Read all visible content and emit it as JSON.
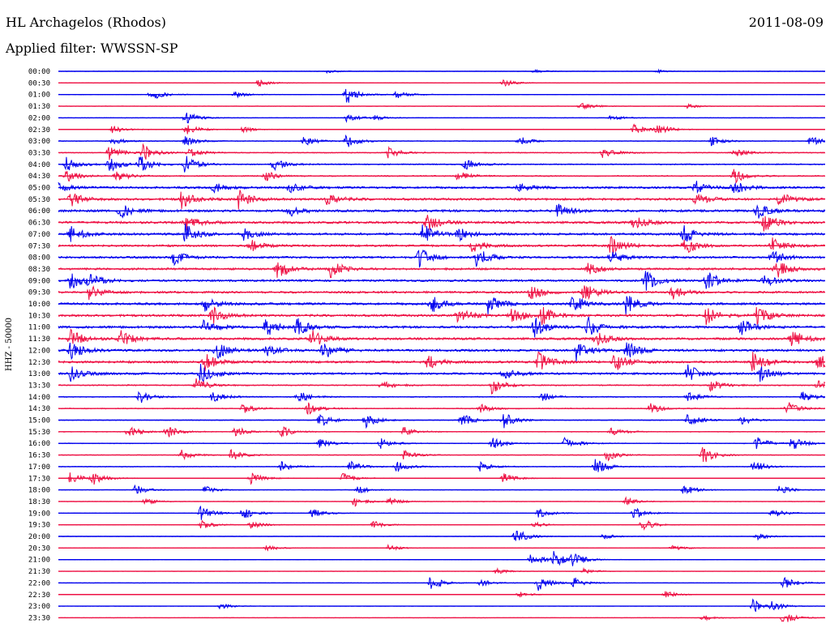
{
  "header": {
    "station": "HL Archagelos (Rhodos)",
    "date": "2011-08-09",
    "filter": "Applied filter: WWSSN-SP"
  },
  "channel_label": "HHZ - 50000",
  "colors": {
    "even_trace": "#0000ee",
    "odd_trace": "#ee1144",
    "background": "#ffffff",
    "text": "#000000"
  },
  "chart_data": {
    "type": "line",
    "title": "HL Archagelos (Rhodos)",
    "subtitle": "Applied filter: WWSSN-SP",
    "ylabel": "HHZ - 50000",
    "xlabel": "",
    "grid": false,
    "legend": "none",
    "trace_minutes": 30,
    "rows": [
      {
        "label": "00:00",
        "events": [
          [
            35,
            0.15
          ],
          [
            62,
            0.2
          ],
          [
            78,
            0.15
          ]
        ],
        "noise": 0.08
      },
      {
        "label": "00:30",
        "events": [
          [
            26,
            0.35
          ],
          [
            58,
            0.4
          ]
        ],
        "noise": 0.1
      },
      {
        "label": "01:00",
        "events": [
          [
            12,
            0.6
          ],
          [
            23,
            0.3
          ],
          [
            37.5,
            1.0
          ],
          [
            44,
            0.4
          ]
        ],
        "noise": 0.1
      },
      {
        "label": "01:30",
        "events": [
          [
            68,
            0.5
          ],
          [
            82,
            0.2
          ]
        ],
        "noise": 0.08
      },
      {
        "label": "02:00",
        "events": [
          [
            16.5,
            0.7
          ],
          [
            37.5,
            0.5
          ],
          [
            41,
            0.3
          ],
          [
            72,
            0.3
          ]
        ],
        "noise": 0.1
      },
      {
        "label": "02:30",
        "events": [
          [
            7,
            0.4
          ],
          [
            16.5,
            0.6
          ],
          [
            24,
            0.3
          ],
          [
            75,
            0.5
          ],
          [
            78,
            0.6
          ]
        ],
        "noise": 0.12
      },
      {
        "label": "03:00",
        "events": [
          [
            7,
            0.4
          ],
          [
            16.5,
            0.5
          ],
          [
            32,
            0.5
          ],
          [
            37.5,
            0.7
          ],
          [
            60,
            0.5
          ],
          [
            85,
            0.5
          ],
          [
            98,
            0.5
          ]
        ],
        "noise": 0.15
      },
      {
        "label": "03:30",
        "events": [
          [
            6.5,
            0.8
          ],
          [
            11,
            0.9
          ],
          [
            17,
            0.5
          ],
          [
            43,
            0.6
          ],
          [
            71,
            0.6
          ],
          [
            88,
            0.5
          ]
        ],
        "noise": 0.2
      },
      {
        "label": "04:00",
        "events": [
          [
            1,
            0.7
          ],
          [
            6.5,
            0.9
          ],
          [
            10.5,
            0.9
          ],
          [
            16.5,
            0.9
          ],
          [
            28,
            0.6
          ],
          [
            53,
            0.6
          ]
        ],
        "noise": 0.25
      },
      {
        "label": "04:30",
        "events": [
          [
            1,
            0.6
          ],
          [
            7.5,
            0.6
          ],
          [
            27,
            0.5
          ],
          [
            52,
            0.5
          ],
          [
            88,
            0.8
          ]
        ],
        "noise": 0.25
      },
      {
        "label": "05:00",
        "events": [
          [
            0,
            0.5
          ],
          [
            20,
            0.6
          ],
          [
            30,
            0.5
          ],
          [
            60,
            0.5
          ],
          [
            83,
            0.7
          ],
          [
            88,
            0.7
          ]
        ],
        "noise": 0.45
      },
      {
        "label": "05:30",
        "events": [
          [
            1.5,
            0.8
          ],
          [
            16,
            0.9
          ],
          [
            23.5,
            0.9
          ],
          [
            35,
            0.7
          ],
          [
            83,
            0.7
          ],
          [
            94,
            0.7
          ]
        ],
        "noise": 0.5
      },
      {
        "label": "06:00",
        "events": [
          [
            8,
            0.7
          ],
          [
            30,
            0.6
          ],
          [
            65,
            0.7
          ],
          [
            91,
            0.8
          ]
        ],
        "noise": 0.5
      },
      {
        "label": "06:30",
        "events": [
          [
            16.5,
            0.8
          ],
          [
            48,
            0.9
          ],
          [
            75,
            0.7
          ],
          [
            92,
            0.9
          ]
        ],
        "noise": 0.5
      },
      {
        "label": "07:00",
        "events": [
          [
            1.5,
            0.8
          ],
          [
            16.5,
            1.0
          ],
          [
            24,
            0.7
          ],
          [
            47.5,
            1.0
          ],
          [
            52,
            0.7
          ],
          [
            81.5,
            0.9
          ]
        ],
        "noise": 0.5
      },
      {
        "label": "07:30",
        "events": [
          [
            25,
            0.6
          ],
          [
            54,
            0.7
          ],
          [
            72,
            1.0
          ],
          [
            81.5,
            1.0
          ],
          [
            93,
            0.8
          ]
        ],
        "noise": 0.45
      },
      {
        "label": "08:00",
        "events": [
          [
            15,
            0.7
          ],
          [
            47,
            1.0
          ],
          [
            54.5,
            1.0
          ],
          [
            72,
            0.7
          ],
          [
            93,
            0.7
          ]
        ],
        "noise": 0.45
      },
      {
        "label": "08:30",
        "events": [
          [
            28.5,
            1.0
          ],
          [
            35.5,
            1.0
          ],
          [
            93.5,
            1.0
          ],
          [
            69,
            0.6
          ]
        ],
        "noise": 0.45
      },
      {
        "label": "09:00",
        "events": [
          [
            1.5,
            1.0
          ],
          [
            4,
            0.7
          ],
          [
            76.5,
            1.0
          ],
          [
            84.5,
            1.0
          ],
          [
            92,
            0.7
          ]
        ],
        "noise": 0.45
      },
      {
        "label": "09:30",
        "events": [
          [
            4,
            0.7
          ],
          [
            61.5,
            1.0
          ],
          [
            68.5,
            1.0
          ],
          [
            80,
            0.7
          ]
        ],
        "noise": 0.45
      },
      {
        "label": "10:00",
        "events": [
          [
            19,
            0.7
          ],
          [
            48.5,
            1.0
          ],
          [
            56,
            1.0
          ],
          [
            67,
            0.9
          ],
          [
            74,
            1.0
          ]
        ],
        "noise": 0.5
      },
      {
        "label": "10:30",
        "events": [
          [
            20,
            0.9
          ],
          [
            52,
            0.9
          ],
          [
            59,
            1.0
          ],
          [
            63,
            0.9
          ],
          [
            84.5,
            1.0
          ],
          [
            91,
            1.0
          ]
        ],
        "noise": 0.5
      },
      {
        "label": "11:00",
        "events": [
          [
            19,
            0.9
          ],
          [
            27,
            1.0
          ],
          [
            31,
            0.9
          ],
          [
            62,
            1.0
          ],
          [
            69,
            1.0
          ],
          [
            89,
            0.9
          ]
        ],
        "noise": 0.5
      },
      {
        "label": "11:30",
        "events": [
          [
            1.5,
            1.0
          ],
          [
            8,
            0.9
          ],
          [
            33,
            1.0
          ],
          [
            70,
            0.8
          ],
          [
            95.5,
            1.0
          ]
        ],
        "noise": 0.5
      },
      {
        "label": "12:00",
        "events": [
          [
            1.5,
            1.0
          ],
          [
            20.5,
            1.0
          ],
          [
            27,
            0.8
          ],
          [
            34.5,
            1.0
          ],
          [
            67.5,
            1.0
          ],
          [
            74,
            0.9
          ]
        ],
        "noise": 0.5
      },
      {
        "label": "12:30",
        "events": [
          [
            19,
            0.9
          ],
          [
            48,
            0.8
          ],
          [
            62.5,
            1.0
          ],
          [
            72.5,
            1.0
          ],
          [
            90.5,
            1.0
          ],
          [
            99,
            1.0
          ]
        ],
        "noise": 0.5
      },
      {
        "label": "13:00",
        "events": [
          [
            1.5,
            0.8
          ],
          [
            18.5,
            1.0
          ],
          [
            58,
            0.7
          ],
          [
            82,
            1.0
          ],
          [
            91.5,
            1.0
          ]
        ],
        "noise": 0.45
      },
      {
        "label": "13:30",
        "events": [
          [
            18,
            0.7
          ],
          [
            42,
            0.5
          ],
          [
            56.5,
            0.8
          ],
          [
            85,
            0.6
          ],
          [
            99,
            0.6
          ]
        ],
        "noise": 0.25
      },
      {
        "label": "14:00",
        "events": [
          [
            10.5,
            0.7
          ],
          [
            20,
            0.6
          ],
          [
            31,
            0.7
          ],
          [
            63,
            0.5
          ],
          [
            82,
            0.6
          ],
          [
            97,
            0.6
          ]
        ],
        "noise": 0.2
      },
      {
        "label": "14:30",
        "events": [
          [
            24,
            0.5
          ],
          [
            32.5,
            0.6
          ],
          [
            55,
            0.5
          ],
          [
            77,
            0.6
          ],
          [
            95,
            0.7
          ]
        ],
        "noise": 0.2
      },
      {
        "label": "15:00",
        "events": [
          [
            34,
            0.8
          ],
          [
            40,
            0.8
          ],
          [
            52.5,
            0.7
          ],
          [
            58,
            0.8
          ],
          [
            82,
            0.8
          ],
          [
            89,
            0.5
          ]
        ],
        "noise": 0.15
      },
      {
        "label": "15:30",
        "events": [
          [
            9,
            0.6
          ],
          [
            14,
            0.7
          ],
          [
            23,
            0.6
          ],
          [
            29,
            0.6
          ],
          [
            45,
            0.5
          ],
          [
            72,
            0.5
          ]
        ],
        "noise": 0.15
      },
      {
        "label": "16:00",
        "events": [
          [
            34,
            0.5
          ],
          [
            42,
            0.6
          ],
          [
            56.5,
            0.6
          ],
          [
            66,
            0.7
          ],
          [
            91,
            0.7
          ],
          [
            95.5,
            0.8
          ]
        ],
        "noise": 0.15
      },
      {
        "label": "16:30",
        "events": [
          [
            16,
            0.5
          ],
          [
            22.5,
            0.6
          ],
          [
            45,
            0.5
          ],
          [
            71.5,
            0.6
          ],
          [
            84,
            0.9
          ]
        ],
        "noise": 0.15
      },
      {
        "label": "17:00",
        "events": [
          [
            29,
            0.5
          ],
          [
            38,
            0.6
          ],
          [
            44,
            0.6
          ],
          [
            55,
            0.5
          ],
          [
            70,
            0.8
          ],
          [
            90.5,
            0.7
          ]
        ],
        "noise": 0.15
      },
      {
        "label": "17:30",
        "events": [
          [
            1.5,
            0.6
          ],
          [
            4.5,
            0.6
          ],
          [
            25,
            0.6
          ],
          [
            37,
            0.5
          ],
          [
            58,
            0.5
          ]
        ],
        "noise": 0.12
      },
      {
        "label": "18:00",
        "events": [
          [
            10,
            0.5
          ],
          [
            19,
            0.4
          ],
          [
            39,
            0.4
          ],
          [
            81.5,
            0.6
          ],
          [
            94,
            0.5
          ]
        ],
        "noise": 0.1
      },
      {
        "label": "18:30",
        "events": [
          [
            11,
            0.4
          ],
          [
            38.5,
            0.5
          ],
          [
            43,
            0.4
          ],
          [
            74,
            0.4
          ]
        ],
        "noise": 0.1
      },
      {
        "label": "19:00",
        "events": [
          [
            18.5,
            0.7
          ],
          [
            24,
            0.7
          ],
          [
            33,
            0.5
          ],
          [
            62.5,
            0.5
          ],
          [
            75,
            0.6
          ],
          [
            93,
            0.5
          ]
        ],
        "noise": 0.12
      },
      {
        "label": "19:30",
        "events": [
          [
            18.5,
            0.5
          ],
          [
            25,
            0.4
          ],
          [
            41,
            0.4
          ],
          [
            62,
            0.3
          ],
          [
            76,
            0.7
          ]
        ],
        "noise": 0.1
      },
      {
        "label": "20:00",
        "events": [
          [
            59.5,
            0.9
          ],
          [
            71,
            0.3
          ],
          [
            91,
            0.4
          ]
        ],
        "noise": 0.08
      },
      {
        "label": "20:30",
        "events": [
          [
            27,
            0.3
          ],
          [
            43,
            0.3
          ],
          [
            80,
            0.3
          ]
        ],
        "noise": 0.08
      },
      {
        "label": "21:00",
        "events": [
          [
            61.5,
            0.7
          ],
          [
            64.5,
            0.8
          ],
          [
            67,
            0.7
          ]
        ],
        "noise": 0.08
      },
      {
        "label": "21:30",
        "events": [
          [
            57,
            0.3
          ],
          [
            68.5,
            0.3
          ]
        ],
        "noise": 0.06
      },
      {
        "label": "22:00",
        "events": [
          [
            48.5,
            0.8
          ],
          [
            55,
            0.4
          ],
          [
            62.5,
            0.8
          ],
          [
            67.2,
            0.6
          ],
          [
            94.5,
            0.8
          ]
        ],
        "noise": 0.08
      },
      {
        "label": "22:30",
        "events": [
          [
            60,
            0.3
          ],
          [
            79,
            0.4
          ]
        ],
        "noise": 0.06
      },
      {
        "label": "23:00",
        "events": [
          [
            21,
            0.3
          ],
          [
            90.5,
            0.8
          ],
          [
            93,
            0.4
          ]
        ],
        "noise": 0.06
      },
      {
        "label": "23:30",
        "events": [
          [
            84,
            0.3
          ],
          [
            94.5,
            0.7
          ]
        ],
        "noise": 0.06
      }
    ]
  }
}
